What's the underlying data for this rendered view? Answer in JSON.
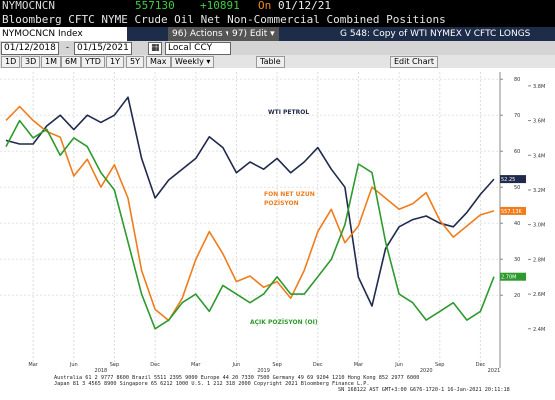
{
  "header": {
    "ticker": "NYMOCNCN",
    "last": "557130",
    "change": "+10891",
    "on": "On",
    "date": "01/12/21",
    "title": "Bloomberg CFTC NYME Crude Oil Net Non-Commercial Combined Positions"
  },
  "toolbar": {
    "security": "NYMOCNCN Index",
    "actions": "96) Actions",
    "edit": "97) Edit",
    "chart_name": "G 548: Copy of WTI NYMEX V CFTC LONGS",
    "start_date": "01/12/2018",
    "end_date": "01/15/2021",
    "currency": "Local CCY",
    "periods": [
      "1D",
      "3D",
      "1M",
      "6M",
      "YTD",
      "1Y",
      "5Y",
      "Max"
    ],
    "frequency": "Weekly",
    "table": "Table",
    "edit_chart": "Edit Chart"
  },
  "chart_data": {
    "type": "line",
    "categories": [
      null,
      null,
      "Mar",
      null,
      null,
      "Jun",
      null,
      null,
      "Sep",
      null,
      null,
      "Dec",
      null,
      null,
      "Mar",
      null,
      null,
      "Jun",
      null,
      null,
      "Sep",
      null,
      null,
      "Dec",
      null,
      null,
      "Mar",
      null,
      null,
      "Jun",
      null,
      null,
      "Sep",
      null,
      null,
      "Dec",
      null
    ],
    "years": [
      "2018",
      "2019",
      "2020",
      "2021"
    ],
    "series": [
      {
        "label": [
          "WTI PETROL"
        ],
        "color": "#1f2a4d",
        "axis": "y",
        "values": [
          63,
          62,
          62,
          67,
          70,
          66,
          70,
          68,
          70,
          75,
          58,
          47,
          52,
          55,
          58,
          64,
          61,
          54,
          57,
          55,
          58,
          54,
          57,
          61,
          55,
          50,
          25,
          17,
          33,
          39,
          41,
          42,
          40,
          39,
          43,
          48,
          52.25
        ],
        "last_label": "52.25"
      },
      {
        "label": [
          "FON NET UZUN",
          "POZİSYON"
        ],
        "color": "#f07c1c",
        "axis": "y3",
        "values": [
          720000,
          745000,
          720000,
          700000,
          690000,
          620000,
          650000,
          600000,
          640000,
          580000,
          450000,
          380000,
          360000,
          400000,
          470000,
          520000,
          480000,
          430000,
          440000,
          420000,
          430000,
          400000,
          450000,
          520000,
          560000,
          500000,
          530000,
          600000,
          580000,
          560000,
          570000,
          590000,
          540000,
          510000,
          530000,
          550000,
          557130
        ],
        "last_label": "557.13K"
      },
      {
        "label": [
          "AÇIK POZİSYON (OI)"
        ],
        "color": "#2e9a2e",
        "axis": "y2",
        "values": [
          3.45,
          3.6,
          3.5,
          3.55,
          3.4,
          3.5,
          3.45,
          3.3,
          3.2,
          2.9,
          2.6,
          2.4,
          2.45,
          2.55,
          2.6,
          2.5,
          2.65,
          2.6,
          2.55,
          2.6,
          2.7,
          2.6,
          2.6,
          2.7,
          2.8,
          3.0,
          3.35,
          3.3,
          2.9,
          2.6,
          2.55,
          2.45,
          2.5,
          2.55,
          2.45,
          2.5,
          2.7
        ],
        "last_label": "2.70M"
      }
    ],
    "ylim": [
      2,
      82
    ],
    "yticks": [
      20,
      30,
      40,
      50,
      60,
      70,
      80
    ],
    "y2lim": [
      2.22,
      3.88
    ],
    "y2ticks": [
      {
        "value": 2.4,
        "label": "2.4M"
      },
      {
        "value": 2.6,
        "label": "2.6M"
      },
      {
        "value": 2.8,
        "label": "2.8M"
      },
      {
        "value": 3.0,
        "label": "3.0M"
      },
      {
        "value": 3.2,
        "label": "3.2M"
      },
      {
        "value": 3.4,
        "label": "3.4M"
      },
      {
        "value": 3.6,
        "label": "3.6M"
      },
      {
        "value": 3.8,
        "label": "3.8M"
      }
    ],
    "y3lim": [
      289000,
      807000
    ],
    "grid": true
  },
  "footer": {
    "lines": [
      "Australia 61 2 9777 8600 Brazil 5511 2395 9000 Europe 44 20 7330 7500 Germany 49 69 9204 1210 Hong Kong 852 2977 6000",
      "Japan 81 3 4565 8900         Singapore 65 6212 1000         U.S. 1 212 318 2000         Copyright 2021 Bloomberg Finance L.P.",
      "SN 168122 AST  GMT+3:00 G676-1720-1 16-Jan-2021 20:11:18"
    ]
  }
}
